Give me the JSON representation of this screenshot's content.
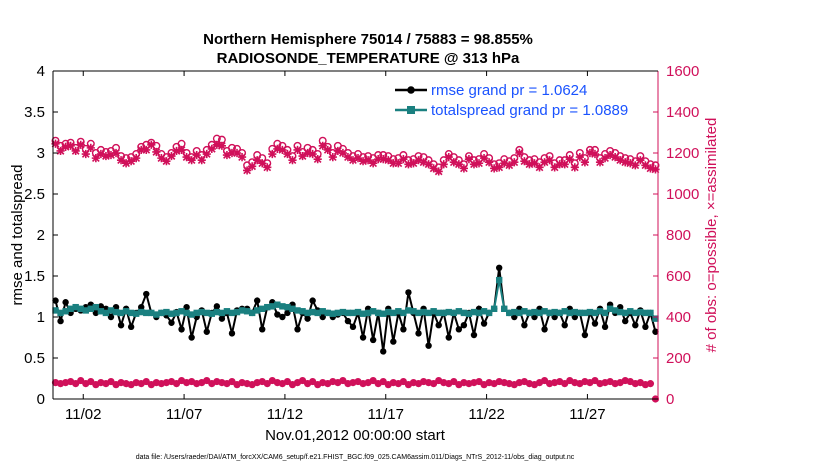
{
  "chart_data": {
    "type": "line",
    "title_line1": "Northern Hemisphere 75014 / 75883 = 98.855%",
    "title_line2": "RADIOSONDE_TEMPERATURE @ 313 hPa",
    "ylabel_left": "rmse and totalspread",
    "ylabel_right": "# of obs: o=possible, ×=assimilated",
    "xlabel": "Nov.01,2012 00:00:00 start",
    "footnote": "data file: /Users/raeder/DAI/ATM_forcXX/CAM6_setup/f.e21.FHIST_BGC.f09_025.CAM6assim.011/Diags_NTrS_2012-11/obs_diag_output.nc",
    "ylim_left": [
      0,
      4
    ],
    "ylim_right": [
      0,
      1600
    ],
    "xlim": [
      0.5,
      30.5
    ],
    "yticks_left": [
      "0",
      "0.5",
      "1",
      "1.5",
      "2",
      "2.5",
      "3",
      "3.5",
      "4"
    ],
    "yticks_left_values": [
      0,
      0.5,
      1,
      1.5,
      2,
      2.5,
      3,
      3.5,
      4
    ],
    "yticks_right": [
      "0",
      "200",
      "400",
      "600",
      "800",
      "1000",
      "1200",
      "1400",
      "1600"
    ],
    "yticks_right_values": [
      0,
      200,
      400,
      600,
      800,
      1000,
      1200,
      1400,
      1600
    ],
    "xticks": [
      "11/02",
      "11/07",
      "11/12",
      "11/17",
      "11/22",
      "11/27"
    ],
    "xticks_values": [
      2,
      7,
      12,
      17,
      22,
      27
    ],
    "legend": [
      "rmse grand pr = 1.0624",
      "totalspread grand pr = 1.0889"
    ],
    "colors": {
      "rmse": "#000000",
      "totalspread": "#1a8080",
      "obs": "#d0105a",
      "legend_text": "#1a53ff"
    },
    "series": [
      {
        "name": "rmse",
        "axis": "left",
        "values": [
          1.2,
          0.95,
          1.18,
          1.05,
          1.1,
          1.08,
          1.12,
          1.15,
          1.05,
          1.13,
          1.1,
          1.0,
          1.12,
          0.9,
          1.1,
          0.88,
          1.05,
          1.12,
          1.28,
          1.05,
          1.0,
          1.05,
          1.02,
          0.93,
          1.06,
          0.85,
          1.12,
          0.75,
          1.0,
          1.08,
          0.82,
          1.05,
          1.13,
          0.98,
          1.05,
          0.8,
          1.08,
          1.1,
          1.1,
          1.05,
          1.2,
          0.85,
          1.12,
          1.18,
          1.03,
          1.0,
          1.05,
          1.15,
          0.85,
          1.05,
          0.98,
          1.2,
          1.08,
          1.0,
          1.05,
          1.0,
          1.03,
          1.05,
          0.95,
          0.88,
          1.05,
          0.75,
          1.1,
          0.72,
          1.05,
          0.58,
          1.1,
          0.7,
          1.05,
          0.85,
          1.3,
          1.05,
          0.8,
          1.1,
          0.65,
          1.05,
          0.9,
          1.05,
          0.75,
          1.05,
          0.85,
          0.9,
          1.05,
          0.78,
          1.1,
          0.92,
          1.05,
          1.1,
          1.6,
          1.1,
          1.05,
          1.0,
          1.1,
          0.9,
          1.05,
          1.0,
          1.1,
          0.85,
          1.05,
          1.0,
          1.05,
          0.9,
          1.1,
          1.0,
          1.05,
          0.78,
          1.05,
          0.92,
          1.1,
          0.88,
          1.15,
          1.05,
          1.12,
          0.95,
          1.05,
          0.9,
          1.08,
          0.88,
          1.05,
          0.82
        ]
      },
      {
        "name": "totalspread",
        "axis": "left",
        "values": [
          1.08,
          1.05,
          1.07,
          1.1,
          1.12,
          1.1,
          1.08,
          1.1,
          1.12,
          1.07,
          1.05,
          1.08,
          1.06,
          1.05,
          1.07,
          1.05,
          1.04,
          1.06,
          1.05,
          1.05,
          1.03,
          1.05,
          1.06,
          1.04,
          1.05,
          1.07,
          1.05,
          1.03,
          1.05,
          1.06,
          1.05,
          1.04,
          1.06,
          1.05,
          1.07,
          1.05,
          1.06,
          1.08,
          1.07,
          1.05,
          1.08,
          1.1,
          1.12,
          1.13,
          1.15,
          1.13,
          1.12,
          1.1,
          1.08,
          1.07,
          1.05,
          1.06,
          1.05,
          1.07,
          1.05,
          1.04,
          1.05,
          1.06,
          1.05,
          1.05,
          1.06,
          1.04,
          1.05,
          1.07,
          1.05,
          1.04,
          1.06,
          1.05,
          1.07,
          1.05,
          1.08,
          1.07,
          1.05,
          1.06,
          1.05,
          1.07,
          1.05,
          1.05,
          1.06,
          1.05,
          1.07,
          1.05,
          1.04,
          1.06,
          1.05,
          1.07,
          1.05,
          1.1,
          1.45,
          1.1,
          1.05,
          1.06,
          1.05,
          1.07,
          1.05,
          1.06,
          1.05,
          1.07,
          1.05,
          1.06,
          1.05,
          1.07,
          1.05,
          1.06,
          1.05,
          1.05,
          1.06,
          1.05,
          1.07,
          1.05,
          1.1,
          1.08,
          1.06,
          1.05,
          1.07,
          1.05,
          1.06,
          1.05,
          1.05,
          0.98
        ]
      },
      {
        "name": "obs_possible",
        "axis": "right",
        "values": [
          1260,
          1235,
          1245,
          1250,
          1225,
          1255,
          1220,
          1245,
          1200,
          1215,
          1205,
          1210,
          1225,
          1185,
          1175,
          1180,
          1195,
          1230,
          1240,
          1250,
          1235,
          1195,
          1180,
          1200,
          1230,
          1245,
          1200,
          1180,
          1210,
          1190,
          1215,
          1240,
          1270,
          1265,
          1210,
          1225,
          1220,
          1200,
          1140,
          1155,
          1190,
          1175,
          1150,
          1220,
          1245,
          1235,
          1215,
          1185,
          1235,
          1205,
          1225,
          1215,
          1195,
          1260,
          1230,
          1200,
          1235,
          1220,
          1200,
          1185,
          1195,
          1180,
          1185,
          1175,
          1190,
          1190,
          1185,
          1170,
          1175,
          1190,
          1165,
          1170,
          1185,
          1180,
          1165,
          1145,
          1130,
          1165,
          1195,
          1180,
          1165,
          1145,
          1185,
          1165,
          1170,
          1195,
          1175,
          1145,
          1150,
          1170,
          1160,
          1175,
          1215,
          1180,
          1165,
          1170,
          1155,
          1175,
          1185,
          1150,
          1165,
          1165,
          1190,
          1150,
          1200,
          1175,
          1215,
          1215,
          1175,
          1195,
          1210,
          1200,
          1185,
          1175,
          1170,
          1160,
          1185,
          1160,
          1145,
          1140
        ]
      },
      {
        "name": "obs_assimilated",
        "axis": "right",
        "values": [
          1245,
          1210,
          1230,
          1235,
          1210,
          1240,
          1195,
          1225,
          1175,
          1195,
          1185,
          1190,
          1200,
          1165,
          1150,
          1160,
          1175,
          1215,
          1215,
          1240,
          1205,
          1175,
          1160,
          1185,
          1210,
          1215,
          1180,
          1165,
          1190,
          1165,
          1195,
          1220,
          1240,
          1235,
          1190,
          1200,
          1200,
          1180,
          1115,
          1135,
          1165,
          1150,
          1130,
          1195,
          1220,
          1215,
          1195,
          1165,
          1215,
          1185,
          1200,
          1195,
          1170,
          1235,
          1215,
          1180,
          1210,
          1200,
          1180,
          1165,
          1175,
          1160,
          1165,
          1150,
          1170,
          1170,
          1165,
          1150,
          1150,
          1170,
          1145,
          1150,
          1165,
          1155,
          1145,
          1125,
          1110,
          1145,
          1180,
          1155,
          1145,
          1125,
          1170,
          1145,
          1150,
          1175,
          1155,
          1125,
          1130,
          1150,
          1140,
          1155,
          1200,
          1160,
          1145,
          1150,
          1130,
          1155,
          1165,
          1130,
          1145,
          1145,
          1170,
          1130,
          1180,
          1155,
          1200,
          1195,
          1155,
          1175,
          1190,
          1180,
          1165,
          1155,
          1150,
          1140,
          1165,
          1140,
          1125,
          1120
        ]
      },
      {
        "name": "obs_low",
        "axis": "right",
        "values": [
          80,
          75,
          80,
          85,
          75,
          90,
          75,
          85,
          70,
          80,
          75,
          85,
          70,
          80,
          75,
          70,
          80,
          75,
          85,
          70,
          80,
          75,
          80,
          85,
          75,
          90,
          80,
          85,
          75,
          80,
          90,
          75,
          85,
          80,
          75,
          85,
          70,
          80,
          75,
          70,
          80,
          85,
          75,
          90,
          80,
          75,
          85,
          70,
          80,
          90,
          75,
          85,
          70,
          80,
          75,
          85,
          80,
          90,
          75,
          80,
          85,
          75,
          80,
          90,
          75,
          85,
          70,
          80,
          75,
          85,
          70,
          80,
          75,
          85,
          80,
          75,
          90,
          80,
          75,
          85,
          70,
          80,
          75,
          80,
          85,
          70,
          80,
          75,
          85,
          80,
          75,
          70,
          80,
          85,
          75,
          70,
          80,
          90,
          75,
          80,
          85,
          75,
          90,
          80,
          75,
          85,
          80,
          90,
          75,
          80,
          85,
          75,
          80,
          90,
          85,
          75,
          80,
          70,
          75,
          0
        ]
      }
    ]
  }
}
